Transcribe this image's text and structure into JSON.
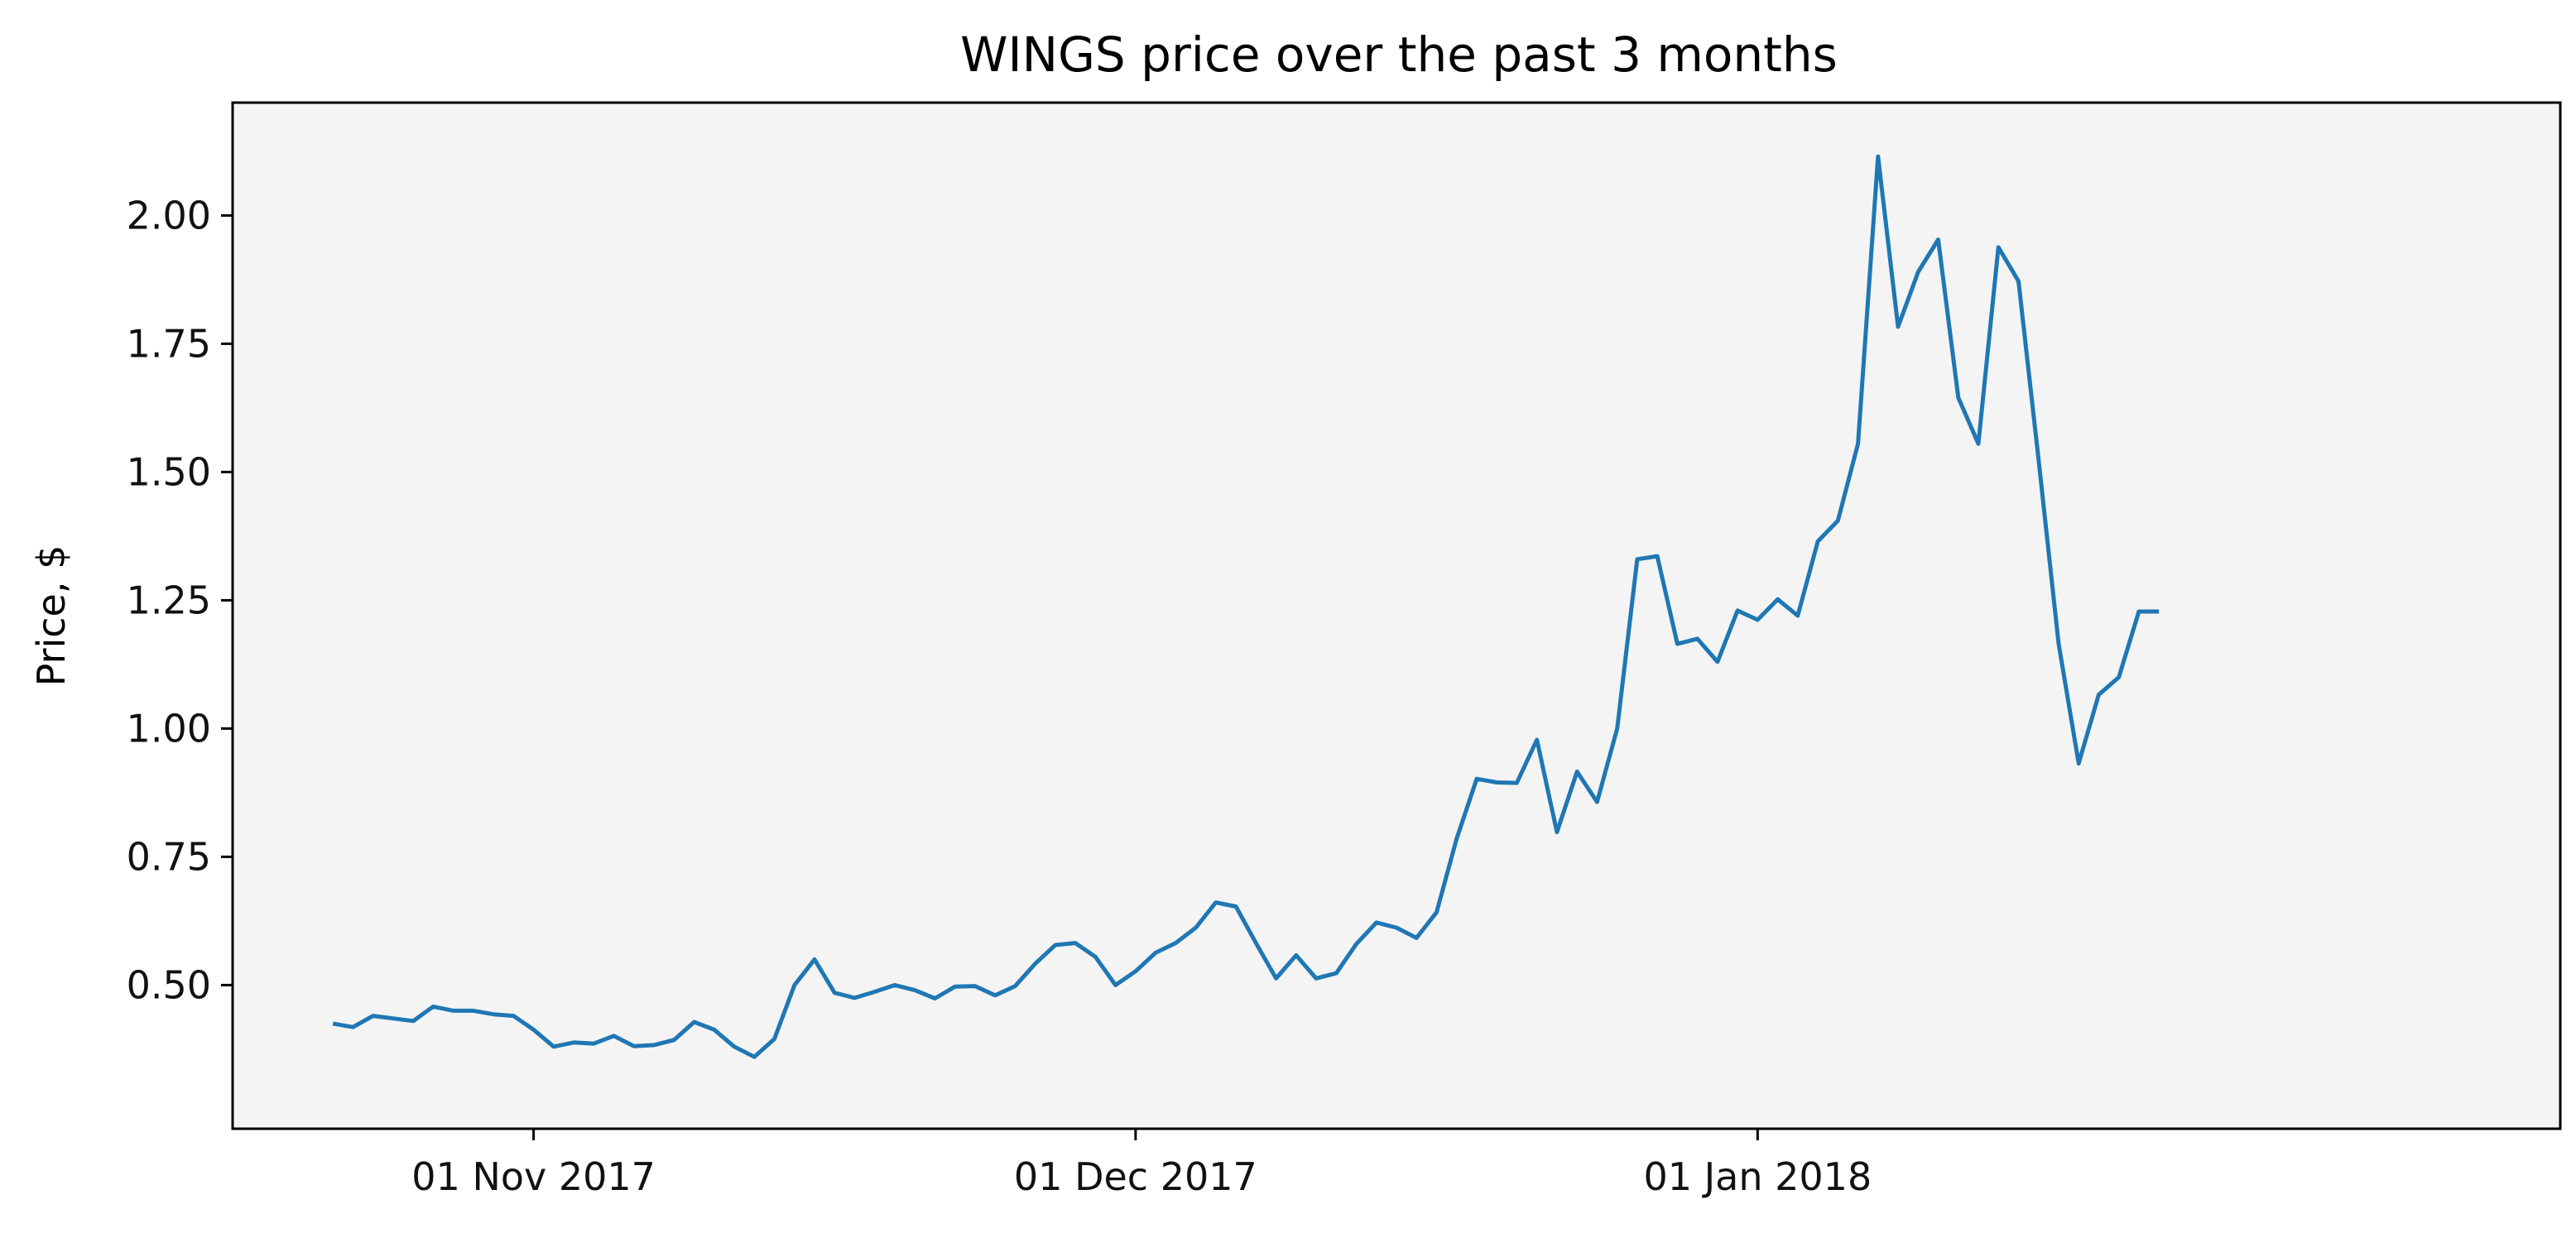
{
  "chart_data": {
    "type": "line",
    "title": "WINGS price over the past 3 months",
    "xlabel": "",
    "ylabel": "Price, $",
    "x_tick_labels": [
      {
        "date": "2017-11-01",
        "label": "01 Nov 2017"
      },
      {
        "date": "2017-12-01",
        "label": "01 Dec 2017"
      },
      {
        "date": "2018-01-01",
        "label": "01 Jan 2018"
      }
    ],
    "y_ticks": [
      0.5,
      0.75,
      1.0,
      1.25,
      1.5,
      1.75,
      2.0
    ],
    "y_tick_labels": [
      "0.50",
      "0.75",
      "1.00",
      "1.25",
      "1.50",
      "1.75",
      "2.00"
    ],
    "xlim": [
      "2017-10-17",
      "2018-02-10"
    ],
    "ylim": [
      0.22,
      2.22
    ],
    "grid": false,
    "background": "#f4f4f4",
    "line_color": "#1f77b4",
    "series": [
      {
        "x": [
          "2017-10-22",
          "2017-10-23",
          "2017-10-24",
          "2017-10-25",
          "2017-10-26",
          "2017-10-27",
          "2017-10-28",
          "2017-10-29",
          "2017-10-30",
          "2017-10-31",
          "2017-11-01",
          "2017-11-02",
          "2017-11-03",
          "2017-11-04",
          "2017-11-05",
          "2017-11-06",
          "2017-11-07",
          "2017-11-08",
          "2017-11-09",
          "2017-11-10",
          "2017-11-11",
          "2017-11-12",
          "2017-11-13",
          "2017-11-14",
          "2017-11-15",
          "2017-11-16",
          "2017-11-17",
          "2017-11-18",
          "2017-11-19",
          "2017-11-20",
          "2017-11-21",
          "2017-11-22",
          "2017-11-23",
          "2017-11-24",
          "2017-11-25",
          "2017-11-26",
          "2017-11-27",
          "2017-11-28",
          "2017-11-29",
          "2017-11-30",
          "2017-12-01",
          "2017-12-02",
          "2017-12-03",
          "2017-12-04",
          "2017-12-05",
          "2017-12-06",
          "2017-12-07",
          "2017-12-08",
          "2017-12-09",
          "2017-12-10",
          "2017-12-11",
          "2017-12-12",
          "2017-12-13",
          "2017-12-14",
          "2017-12-15",
          "2017-12-16",
          "2017-12-17",
          "2017-12-18",
          "2017-12-19",
          "2017-12-20",
          "2017-12-21",
          "2017-12-22",
          "2017-12-23",
          "2017-12-24",
          "2017-12-25",
          "2017-12-26",
          "2017-12-27",
          "2017-12-28",
          "2017-12-29",
          "2017-12-30",
          "2017-12-31",
          "2018-01-01",
          "2018-01-02",
          "2018-01-03",
          "2018-01-04",
          "2018-01-05",
          "2018-01-06",
          "2018-01-07",
          "2018-01-08",
          "2018-01-09",
          "2018-01-10",
          "2018-01-11",
          "2018-01-12",
          "2018-01-13",
          "2018-01-14",
          "2018-01-15",
          "2018-01-16",
          "2018-01-17",
          "2018-01-18",
          "2018-01-19",
          "2018-01-20",
          "2018-01-21"
        ],
        "y": [
          0.425,
          0.418,
          0.44,
          0.435,
          0.43,
          0.458,
          0.45,
          0.45,
          0.443,
          0.44,
          0.413,
          0.38,
          0.388,
          0.386,
          0.401,
          0.381,
          0.383,
          0.393,
          0.428,
          0.413,
          0.38,
          0.36,
          0.395,
          0.5,
          0.55,
          0.485,
          0.475,
          0.487,
          0.5,
          0.49,
          0.474,
          0.497,
          0.498,
          0.48,
          0.498,
          0.542,
          0.578,
          0.582,
          0.555,
          0.5,
          0.527,
          0.563,
          0.582,
          0.612,
          0.661,
          0.653,
          0.582,
          0.513,
          0.558,
          0.513,
          0.523,
          0.58,
          0.622,
          0.612,
          0.592,
          0.642,
          0.785,
          0.902,
          0.895,
          0.894,
          0.978,
          0.798,
          0.916,
          0.857,
          1.0,
          1.33,
          1.336,
          1.165,
          1.175,
          1.13,
          1.23,
          1.212,
          1.252,
          1.22,
          1.365,
          1.405,
          1.555,
          2.115,
          1.783,
          1.89,
          1.953,
          1.645,
          1.555,
          1.938,
          1.872,
          1.525,
          1.165,
          0.932,
          1.066,
          1.1,
          1.228,
          1.228
        ]
      }
    ]
  }
}
